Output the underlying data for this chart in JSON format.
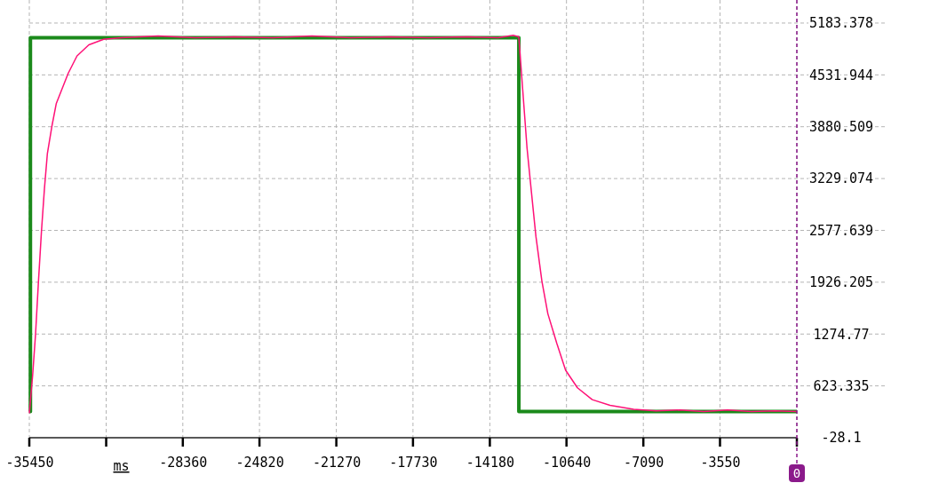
{
  "chart_data": {
    "type": "line",
    "xlabel": "ms",
    "xlim": [
      -35450,
      0
    ],
    "xticks": [
      -35450,
      {
        "value": -31900,
        "label": null
      },
      -28360,
      -24820,
      -21270,
      -17730,
      -14180,
      -10640,
      -7090,
      -3550,
      {
        "value": 0,
        "label": null
      }
    ],
    "ylim": [
      -28.1,
      5473
    ],
    "yticks": [
      -28.1,
      623.335,
      1274.77,
      1926.205,
      2577.639,
      3229.074,
      3880.509,
      4531.944,
      5183.378
    ],
    "grid": true,
    "marker": "none",
    "line_style": "solid",
    "ref_lines": [
      {
        "axis": "x",
        "value": 0,
        "label": "0",
        "color": "#8b1a8b",
        "line_style": "dashed"
      }
    ],
    "series": [
      {
        "type": "step",
        "color": "#1b8a1b",
        "x": [
          -35450,
          -35400,
          -12840,
          0
        ],
        "values": [
          300,
          5000,
          300,
          300
        ]
      },
      {
        "type": "line",
        "color": "#ff1177",
        "x": [
          -35450,
          -35298,
          -35163,
          -35027,
          -34888,
          -34752,
          -34617,
          -34412,
          -34207,
          -33932,
          -33657,
          -33247,
          -32701,
          -32016,
          -31195,
          -29500,
          -27800,
          -26000,
          -24200,
          -22400,
          -20600,
          -18800,
          -17000,
          -15200,
          -13800,
          -13100,
          -12842,
          -12666,
          -12461,
          -12256,
          -12051,
          -11776,
          -11501,
          -11090,
          -10680,
          -10134,
          -9450,
          -8630,
          -7537,
          -6500,
          -5400,
          -4300,
          -3200,
          -2100,
          -1000,
          0
        ],
        "values": [
          280,
          750,
          1270,
          1940,
          2570,
          3100,
          3540,
          3880,
          4170,
          4360,
          4550,
          4770,
          4910,
          4980,
          5000,
          5020,
          5000,
          5010,
          5000,
          5020,
          5000,
          5010,
          5000,
          5010,
          5000,
          5030,
          5010,
          4360,
          3610,
          3050,
          2500,
          1940,
          1530,
          1160,
          820,
          600,
          450,
          380,
          330,
          310,
          320,
          300,
          320,
          300,
          310,
          300
        ]
      }
    ]
  }
}
